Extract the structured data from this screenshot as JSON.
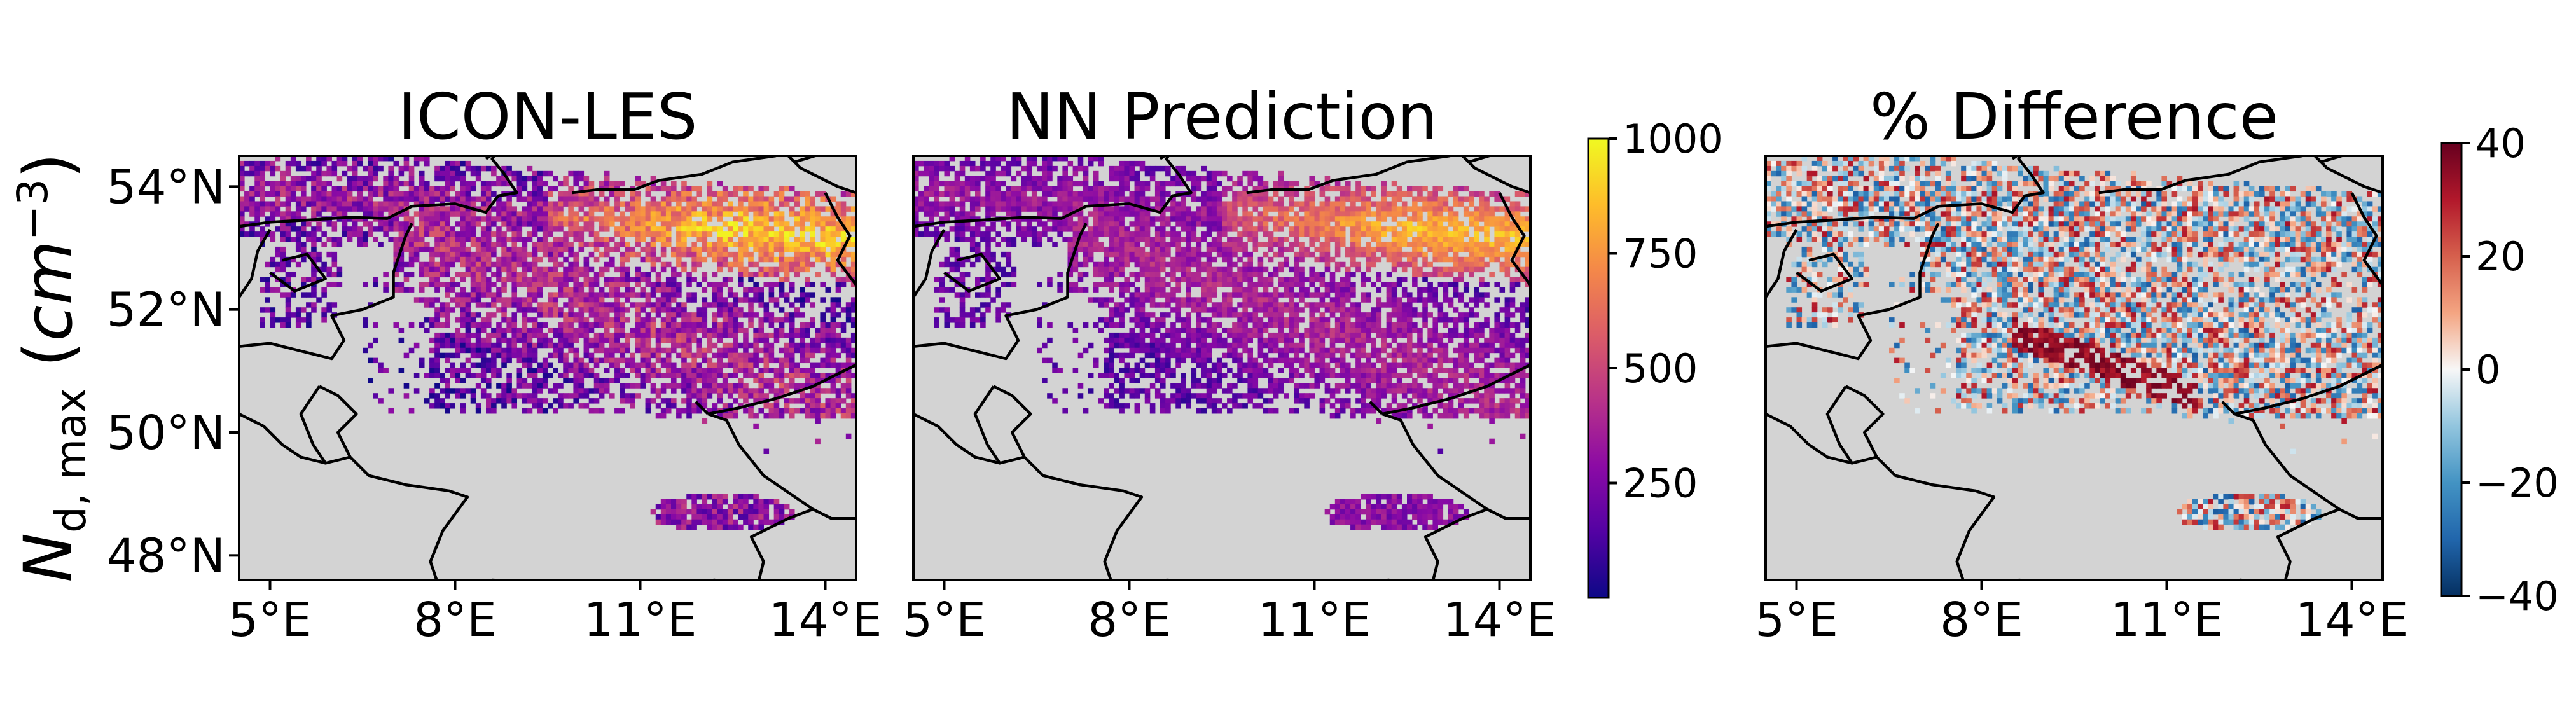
{
  "figure": {
    "ylabel_main": "N",
    "ylabel_sub": "d, max",
    "ylabel_unit_open": " (",
    "ylabel_unit_var": "cm",
    "ylabel_unit_exp": "−3",
    "ylabel_unit_close": ")"
  },
  "chart_data": [
    {
      "type": "heatmap",
      "title": "ICON-LES",
      "xlim": [
        4.5,
        14.5
      ],
      "ylim": [
        47.6,
        54.5
      ],
      "xticks": [
        5,
        8,
        11,
        14
      ],
      "xtick_labels": [
        "5°E",
        "8°E",
        "11°E",
        "14°E"
      ],
      "yticks": [
        48,
        50,
        52,
        54
      ],
      "ytick_labels": [
        "48°N",
        "50°N",
        "52°N",
        "54°N"
      ],
      "colormap": "plasma",
      "background_color": "#d3d3d3"
    },
    {
      "type": "heatmap",
      "title": "NN Prediction",
      "xlim": [
        4.5,
        14.5
      ],
      "ylim": [
        47.6,
        54.5
      ],
      "xticks": [
        5,
        8,
        11,
        14
      ],
      "xtick_labels": [
        "5°E",
        "8°E",
        "11°E",
        "14°E"
      ],
      "colormap": "plasma",
      "background_color": "#d3d3d3",
      "colorbar": {
        "range": [
          0,
          1000
        ],
        "ticks": [
          250,
          500,
          750,
          1000
        ],
        "tick_labels": [
          "250",
          "500",
          "750",
          "1000"
        ],
        "colors": [
          "#0d0887",
          "#5302a3",
          "#8b0aa5",
          "#b83289",
          "#db5c68",
          "#f48849",
          "#febd2a",
          "#f0f921"
        ]
      }
    },
    {
      "type": "heatmap",
      "title": "% Difference",
      "xlim": [
        4.5,
        14.5
      ],
      "ylim": [
        47.6,
        54.5
      ],
      "xticks": [
        5,
        8,
        11,
        14
      ],
      "xtick_labels": [
        "5°E",
        "8°E",
        "11°E",
        "14°E"
      ],
      "colormap": "RdBu_r",
      "background_color": "#d3d3d3",
      "colorbar": {
        "range": [
          -40,
          40
        ],
        "ticks": [
          -40,
          -20,
          0,
          20,
          40
        ],
        "tick_labels": [
          "−40",
          "−20",
          "0",
          "20",
          "40"
        ],
        "colors": [
          "#053061",
          "#2166ac",
          "#4393c3",
          "#92c5de",
          "#f7f7f7",
          "#f4a582",
          "#d6604d",
          "#b2182b",
          "#67001f"
        ]
      }
    }
  ]
}
